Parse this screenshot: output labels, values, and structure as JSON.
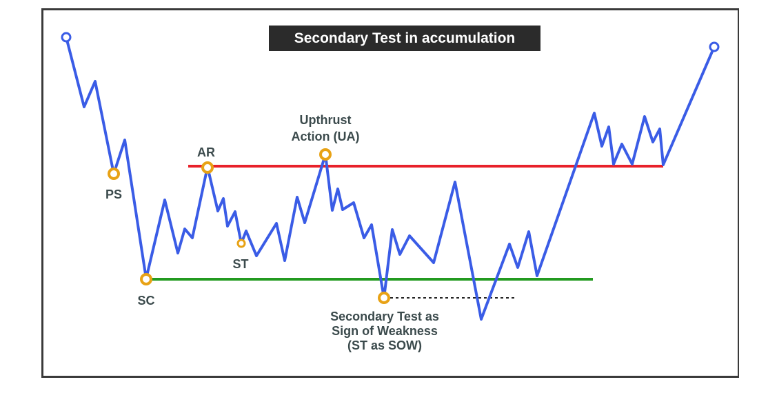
{
  "title": "Secondary Test in accumulation",
  "colors": {
    "price_line": "#3a5ce6",
    "resistance_line": "#e8212a",
    "support_line": "#239a20",
    "event_marker": "#e8a215",
    "title_background": "#2b2b2b"
  },
  "labels": {
    "ps": "PS",
    "sc": "SC",
    "ar": "AR",
    "st": "ST",
    "ua_line1": "Upthrust",
    "ua_line2": "Action (UA)",
    "st_sow_line1": "Secondary Test as",
    "st_sow_line2": "Sign of Weakness",
    "st_sow_line3": "(ST as SOW)"
  }
}
